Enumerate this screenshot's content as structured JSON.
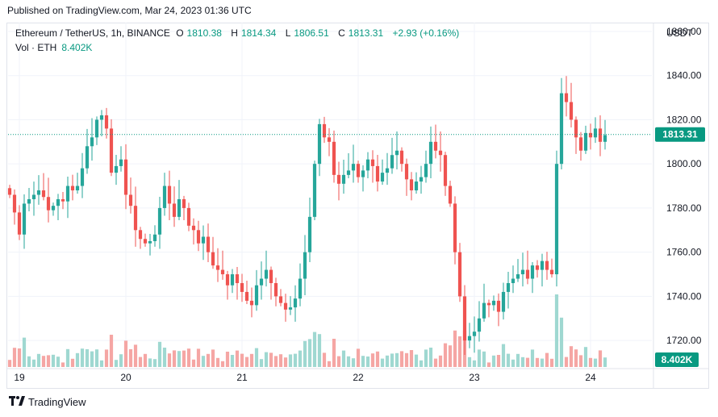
{
  "published": "Published on TradingView.com, Mar 24, 2023 01:36 UTC",
  "legend": {
    "symbol": "Ethereum / TetherUS, 1h, BINANCE",
    "open_label": "O",
    "open": "1810.38",
    "high_label": "H",
    "high": "1814.34",
    "low_label": "L",
    "low": "1806.51",
    "close_label": "C",
    "close": "1813.31",
    "change": "+2.93 (+0.16%)"
  },
  "volume": {
    "label": "Vol · ETH",
    "value": "8.402K"
  },
  "brand": "TradingView",
  "colors": {
    "up": "#26a69a",
    "down": "#ef5350",
    "vol_up": "#9fd8d1",
    "vol_down": "#f5a6a4",
    "price_line": "#089981"
  },
  "chart_data": {
    "type": "candlestick",
    "y_unit": "USDT",
    "ylim": [
      1708,
      1864
    ],
    "y_ticks": [
      1720,
      1740,
      1760,
      1780,
      1800,
      1820,
      1840,
      1860
    ],
    "x_ticks": [
      "19",
      "20",
      "21",
      "22",
      "23",
      "24"
    ],
    "x_tick_index": [
      2,
      24,
      48,
      72,
      96,
      120
    ],
    "last_price": "1813.31",
    "volume_last": "8.402K",
    "closes": [
      1786,
      1778,
      1768,
      1782,
      1784,
      1786,
      1788,
      1785,
      1779,
      1781,
      1784,
      1783,
      1790,
      1788,
      1790,
      1798,
      1808,
      1812,
      1820,
      1822,
      1816,
      1796,
      1799,
      1802,
      1786,
      1781,
      1770,
      1766,
      1764,
      1765,
      1768,
      1780,
      1790,
      1782,
      1776,
      1784,
      1780,
      1772,
      1770,
      1764,
      1767,
      1760,
      1754,
      1752,
      1750,
      1745,
      1750,
      1746,
      1742,
      1738,
      1736,
      1745,
      1748,
      1752,
      1746,
      1740,
      1737,
      1734,
      1735,
      1739,
      1748,
      1760,
      1776,
      1800,
      1818,
      1812,
      1810,
      1795,
      1791,
      1795,
      1797,
      1800,
      1794,
      1797,
      1802,
      1799,
      1792,
      1796,
      1798,
      1804,
      1806,
      1800,
      1793,
      1788,
      1792,
      1794,
      1800,
      1810,
      1806,
      1804,
      1790,
      1782,
      1760,
      1740,
      1720,
      1722,
      1724,
      1730,
      1737,
      1736,
      1738,
      1733,
      1742,
      1746,
      1748,
      1750,
      1752,
      1748,
      1754,
      1752,
      1756,
      1752,
      1750,
      1800,
      1832,
      1828,
      1820,
      1812,
      1806,
      1814,
      1812,
      1816,
      1810,
      1813
    ]
  }
}
